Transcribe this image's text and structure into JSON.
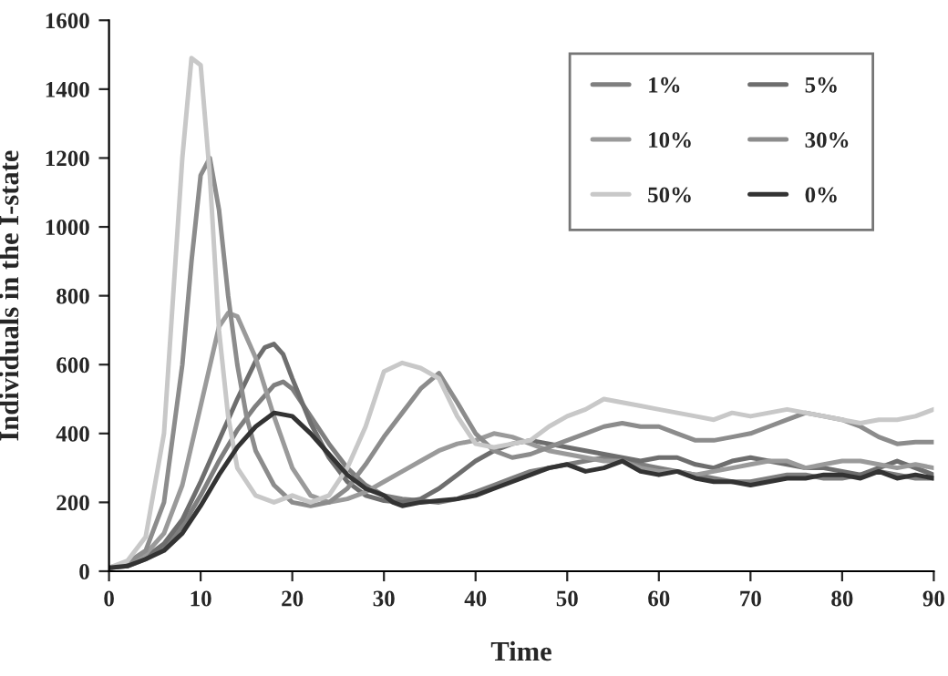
{
  "chart_data": {
    "type": "line",
    "xlabel": "Time",
    "ylabel": "Individuals in the I-state",
    "xlim": [
      0,
      90
    ],
    "xticks": [
      0,
      10,
      20,
      30,
      40,
      50,
      60,
      70,
      80,
      90
    ],
    "ylim": [
      0,
      1600
    ],
    "yticks": [
      0,
      200,
      400,
      600,
      800,
      1000,
      1200,
      1400,
      1600
    ],
    "grid": false,
    "legend": "top right",
    "marker": "none",
    "line_style": "solid",
    "series": [
      {
        "name": "1%",
        "color": "#7f7f7f",
        "x": [
          0,
          2,
          4,
          6,
          8,
          10,
          12,
          14,
          16,
          18,
          19,
          20,
          22,
          24,
          26,
          28,
          30,
          32,
          34,
          36,
          38,
          40,
          42,
          44,
          46,
          48,
          50,
          52,
          54,
          56,
          58,
          60,
          62,
          64,
          66,
          68,
          70,
          72,
          74,
          76,
          78,
          80,
          82,
          84,
          86,
          88,
          90
        ],
        "values": [
          10,
          15,
          35,
          70,
          130,
          220,
          320,
          410,
          480,
          540,
          550,
          530,
          450,
          370,
          300,
          250,
          220,
          210,
          205,
          200,
          210,
          230,
          250,
          270,
          290,
          300,
          310,
          320,
          330,
          320,
          310,
          300,
          290,
          280,
          270,
          260,
          260,
          270,
          280,
          280,
          270,
          270,
          280,
          290,
          280,
          270,
          270
        ]
      },
      {
        "name": "5%",
        "color": "#6e6e6e",
        "x": [
          0,
          2,
          4,
          6,
          8,
          10,
          12,
          14,
          16,
          17,
          18,
          19,
          20,
          22,
          24,
          26,
          28,
          30,
          32,
          34,
          36,
          38,
          40,
          42,
          44,
          46,
          48,
          50,
          52,
          54,
          56,
          58,
          60,
          62,
          64,
          66,
          68,
          70,
          72,
          74,
          76,
          78,
          80,
          82,
          84,
          86,
          88,
          90
        ],
        "values": [
          10,
          18,
          40,
          80,
          150,
          260,
          380,
          500,
          610,
          650,
          660,
          630,
          560,
          430,
          330,
          260,
          220,
          205,
          200,
          210,
          240,
          280,
          320,
          350,
          370,
          380,
          370,
          360,
          350,
          340,
          330,
          320,
          330,
          330,
          310,
          300,
          320,
          330,
          320,
          310,
          300,
          300,
          290,
          280,
          300,
          320,
          300,
          280
        ]
      },
      {
        "name": "10%",
        "color": "#9a9a9a",
        "x": [
          0,
          2,
          4,
          6,
          8,
          10,
          12,
          13,
          14,
          16,
          18,
          20,
          22,
          24,
          26,
          28,
          30,
          32,
          34,
          36,
          38,
          40,
          42,
          44,
          46,
          48,
          50,
          52,
          54,
          56,
          58,
          60,
          62,
          64,
          66,
          68,
          70,
          72,
          74,
          76,
          78,
          80,
          82,
          84,
          86,
          88,
          90
        ],
        "values": [
          10,
          20,
          50,
          110,
          250,
          480,
          710,
          750,
          740,
          620,
          450,
          300,
          220,
          200,
          210,
          230,
          260,
          290,
          320,
          350,
          370,
          380,
          400,
          390,
          370,
          350,
          340,
          330,
          320,
          320,
          300,
          290,
          290,
          280,
          290,
          300,
          310,
          320,
          320,
          300,
          310,
          320,
          320,
          310,
          300,
          310,
          300
        ]
      },
      {
        "name": "30%",
        "color": "#8c8c8c",
        "x": [
          0,
          2,
          4,
          6,
          8,
          9,
          10,
          11,
          12,
          13,
          14,
          15,
          16,
          18,
          20,
          22,
          24,
          26,
          28,
          30,
          32,
          34,
          36,
          38,
          40,
          42,
          44,
          46,
          48,
          50,
          52,
          54,
          56,
          58,
          60,
          62,
          64,
          66,
          68,
          70,
          72,
          74,
          76,
          78,
          80,
          82,
          84,
          86,
          88,
          90
        ],
        "values": [
          10,
          25,
          60,
          200,
          600,
          900,
          1150,
          1200,
          1050,
          800,
          600,
          450,
          350,
          250,
          200,
          190,
          200,
          240,
          310,
          390,
          460,
          530,
          575,
          490,
          400,
          350,
          330,
          340,
          360,
          380,
          400,
          420,
          430,
          420,
          420,
          400,
          380,
          380,
          390,
          400,
          420,
          440,
          460,
          450,
          440,
          420,
          390,
          370,
          375,
          375
        ]
      },
      {
        "name": "50%",
        "color": "#c8c8c8",
        "x": [
          0,
          2,
          4,
          6,
          7,
          8,
          9,
          10,
          11,
          12,
          13,
          14,
          16,
          18,
          20,
          22,
          24,
          26,
          28,
          30,
          32,
          34,
          36,
          38,
          40,
          42,
          44,
          46,
          48,
          50,
          52,
          54,
          56,
          58,
          60,
          62,
          64,
          66,
          68,
          70,
          72,
          74,
          76,
          78,
          80,
          82,
          84,
          86,
          88,
          90
        ],
        "values": [
          10,
          30,
          100,
          400,
          800,
          1200,
          1490,
          1470,
          1150,
          700,
          450,
          300,
          220,
          200,
          220,
          200,
          220,
          300,
          420,
          580,
          605,
          590,
          560,
          450,
          370,
          360,
          370,
          380,
          420,
          450,
          470,
          500,
          490,
          480,
          470,
          460,
          450,
          440,
          460,
          450,
          460,
          470,
          460,
          450,
          440,
          430,
          440,
          440,
          450,
          470
        ]
      },
      {
        "name": "0%",
        "color": "#333333",
        "x": [
          0,
          2,
          4,
          6,
          8,
          10,
          12,
          14,
          16,
          18,
          20,
          22,
          24,
          26,
          28,
          30,
          31,
          32,
          34,
          36,
          38,
          40,
          42,
          44,
          46,
          48,
          50,
          52,
          54,
          56,
          58,
          60,
          62,
          64,
          66,
          68,
          70,
          72,
          74,
          76,
          78,
          80,
          82,
          84,
          86,
          88,
          90
        ],
        "values": [
          10,
          15,
          35,
          60,
          110,
          190,
          280,
          360,
          420,
          460,
          450,
          400,
          340,
          280,
          240,
          220,
          200,
          190,
          200,
          205,
          210,
          220,
          240,
          260,
          280,
          300,
          310,
          290,
          300,
          320,
          290,
          280,
          290,
          270,
          260,
          260,
          250,
          260,
          270,
          270,
          280,
          280,
          270,
          290,
          270,
          280,
          270
        ]
      }
    ]
  }
}
